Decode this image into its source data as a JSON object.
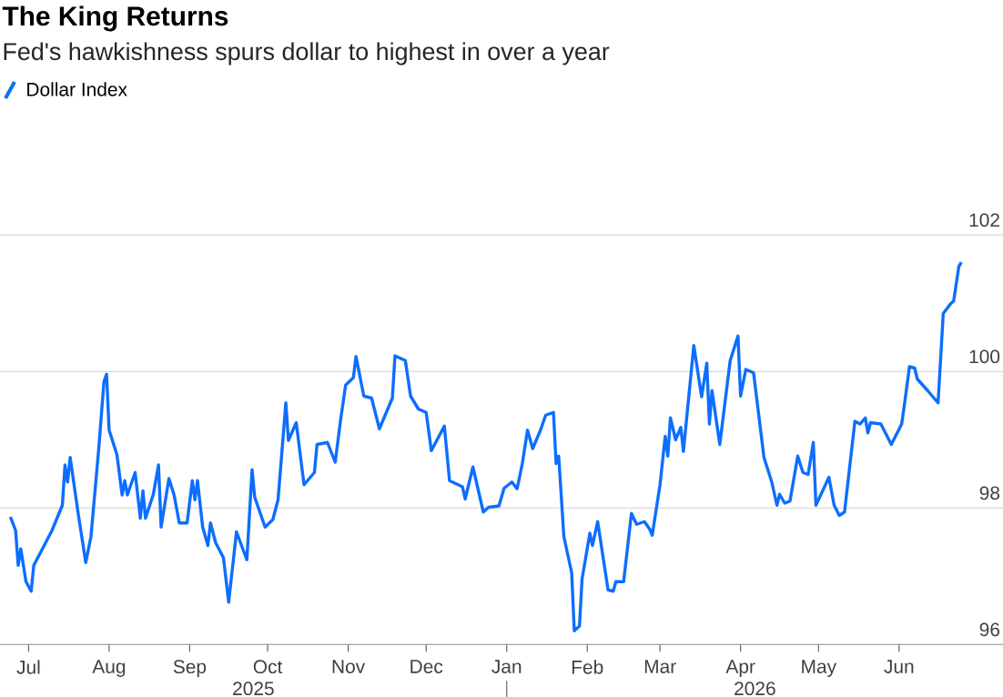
{
  "chart_data": {
    "type": "line",
    "title": "The King Returns",
    "subtitle": "Fed's hawkishness spurs dollar to highest in over a year",
    "legend": "top left",
    "grid": "y",
    "xlim": [
      "2025-06-20",
      "2026-07-11"
    ],
    "ylim": [
      96,
      102
    ],
    "yticks": [
      96,
      98,
      100,
      102
    ],
    "xticks": [
      {
        "value": "2025-07-01",
        "label": "Jul"
      },
      {
        "value": "2025-08-01",
        "label": "Aug"
      },
      {
        "value": "2025-09-01",
        "label": "Sep"
      },
      {
        "value": "2025-10-01",
        "label": "Oct"
      },
      {
        "value": "2025-11-01",
        "label": "Nov"
      },
      {
        "value": "2025-12-01",
        "label": "Dec"
      },
      {
        "value": "2026-01-01",
        "label": "Jan"
      },
      {
        "value": "2026-02-01",
        "label": "Feb"
      },
      {
        "value": "2026-03-01",
        "label": "Mar"
      },
      {
        "value": "2026-04-01",
        "label": "Apr"
      },
      {
        "value": "2026-05-01",
        "label": "May"
      },
      {
        "value": "2026-06-01",
        "label": "Jun"
      }
    ],
    "annotations": [
      "2025",
      "2026"
    ],
    "x": [
      "2025-06-24",
      "2025-06-26",
      "2025-06-27",
      "2025-06-28",
      "2025-06-30",
      "2025-07-02",
      "2025-07-03",
      "2025-07-07",
      "2025-07-10",
      "2025-07-14",
      "2025-07-15",
      "2025-07-16",
      "2025-07-17",
      "2025-07-20",
      "2025-07-23",
      "2025-07-25",
      "2025-07-28",
      "2025-07-30",
      "2025-07-31",
      "2025-08-01",
      "2025-08-04",
      "2025-08-06",
      "2025-08-07",
      "2025-08-08",
      "2025-08-11",
      "2025-08-13",
      "2025-08-14",
      "2025-08-15",
      "2025-08-18",
      "2025-08-20",
      "2025-08-21",
      "2025-08-24",
      "2025-08-26",
      "2025-08-28",
      "2025-08-31",
      "2025-09-02",
      "2025-09-03",
      "2025-09-04",
      "2025-09-06",
      "2025-09-08",
      "2025-09-09",
      "2025-09-11",
      "2025-09-14",
      "2025-09-16",
      "2025-09-19",
      "2025-09-23",
      "2025-09-25",
      "2025-09-26",
      "2025-09-30",
      "2025-10-03",
      "2025-10-05",
      "2025-10-08",
      "2025-10-09",
      "2025-10-12",
      "2025-10-15",
      "2025-10-19",
      "2025-10-20",
      "2025-10-24",
      "2025-10-27",
      "2025-10-29",
      "2025-10-31",
      "2025-11-03",
      "2025-11-04",
      "2025-11-07",
      "2025-11-10",
      "2025-11-13",
      "2025-11-18",
      "2025-11-19",
      "2025-11-23",
      "2025-11-25",
      "2025-11-28",
      "2025-12-01",
      "2025-12-03",
      "2025-12-08",
      "2025-12-10",
      "2025-12-15",
      "2025-12-16",
      "2025-12-19",
      "2025-12-23",
      "2025-12-25",
      "2025-12-29",
      "2025-12-31",
      "2026-01-03",
      "2026-01-05",
      "2026-01-07",
      "2026-01-09",
      "2026-01-11",
      "2026-01-14",
      "2026-01-16",
      "2026-01-19",
      "2026-01-20",
      "2026-01-21",
      "2026-01-23",
      "2026-01-26",
      "2026-01-27",
      "2026-01-29",
      "2026-01-30",
      "2026-02-02",
      "2026-02-03",
      "2026-02-05",
      "2026-02-09",
      "2026-02-11",
      "2026-02-12",
      "2026-02-15",
      "2026-02-18",
      "2026-02-20",
      "2026-02-23",
      "2026-02-25",
      "2026-02-26",
      "2026-03-01",
      "2026-03-03",
      "2026-03-04",
      "2026-03-05",
      "2026-03-07",
      "2026-03-09",
      "2026-03-10",
      "2026-03-14",
      "2026-03-17",
      "2026-03-19",
      "2026-03-20",
      "2026-03-21",
      "2026-03-24",
      "2026-03-28",
      "2026-03-31",
      "2026-04-01",
      "2026-04-03",
      "2026-04-06",
      "2026-04-10",
      "2026-04-13",
      "2026-04-15",
      "2026-04-16",
      "2026-04-18",
      "2026-04-20",
      "2026-04-23",
      "2026-04-25",
      "2026-04-27",
      "2026-04-29",
      "2026-04-30",
      "2026-05-05",
      "2026-05-07",
      "2026-05-09",
      "2026-05-11",
      "2026-05-15",
      "2026-05-17",
      "2026-05-19",
      "2026-05-20",
      "2026-05-21",
      "2026-05-25",
      "2026-05-29",
      "2026-06-02",
      "2026-06-03",
      "2026-06-05",
      "2026-06-07",
      "2026-06-08",
      "2026-06-12",
      "2026-06-16",
      "2026-06-18",
      "2026-06-21",
      "2026-06-22",
      "2026-06-24",
      "2026-06-25"
    ],
    "series": [
      {
        "name": "Dollar Index",
        "color": "#0d6efd",
        "values": [
          97.87,
          97.67,
          97.16,
          97.4,
          96.92,
          96.78,
          97.16,
          97.45,
          97.67,
          98.04,
          98.63,
          98.38,
          98.74,
          97.94,
          97.2,
          97.58,
          98.87,
          99.85,
          99.96,
          99.14,
          98.78,
          98.19,
          98.4,
          98.19,
          98.52,
          97.85,
          98.25,
          97.85,
          98.2,
          98.63,
          97.72,
          98.43,
          98.19,
          97.78,
          97.78,
          98.4,
          98.12,
          98.4,
          97.72,
          97.45,
          97.78,
          97.49,
          97.27,
          96.62,
          97.65,
          97.24,
          98.56,
          98.16,
          97.72,
          97.83,
          98.12,
          99.54,
          98.99,
          99.25,
          98.34,
          98.52,
          98.93,
          98.96,
          98.67,
          99.27,
          99.8,
          99.91,
          100.22,
          99.64,
          99.61,
          99.16,
          99.61,
          100.23,
          100.16,
          99.64,
          99.45,
          99.4,
          98.84,
          99.2,
          98.4,
          98.31,
          98.13,
          98.6,
          97.94,
          98.01,
          98.03,
          98.29,
          98.38,
          98.28,
          98.65,
          99.14,
          98.87,
          99.14,
          99.36,
          99.4,
          98.65,
          98.76,
          97.58,
          97.05,
          96.2,
          96.27,
          96.96,
          97.63,
          97.45,
          97.8,
          96.8,
          96.78,
          96.92,
          96.92,
          97.92,
          97.76,
          97.8,
          97.69,
          97.6,
          98.34,
          99.05,
          98.76,
          99.32,
          99.0,
          99.18,
          98.83,
          100.38,
          99.63,
          100.12,
          99.23,
          99.72,
          98.93,
          100.16,
          100.52,
          99.64,
          100.03,
          99.98,
          98.74,
          98.38,
          98.04,
          98.2,
          98.07,
          98.1,
          98.76,
          98.52,
          98.49,
          98.96,
          98.04,
          98.45,
          98.04,
          97.89,
          97.94,
          99.27,
          99.23,
          99.32,
          99.1,
          99.25,
          99.23,
          98.93,
          99.23,
          99.5,
          100.07,
          100.05,
          99.89,
          99.72,
          99.54,
          100.85,
          101.0,
          101.03,
          101.54,
          101.6
        ]
      }
    ]
  }
}
